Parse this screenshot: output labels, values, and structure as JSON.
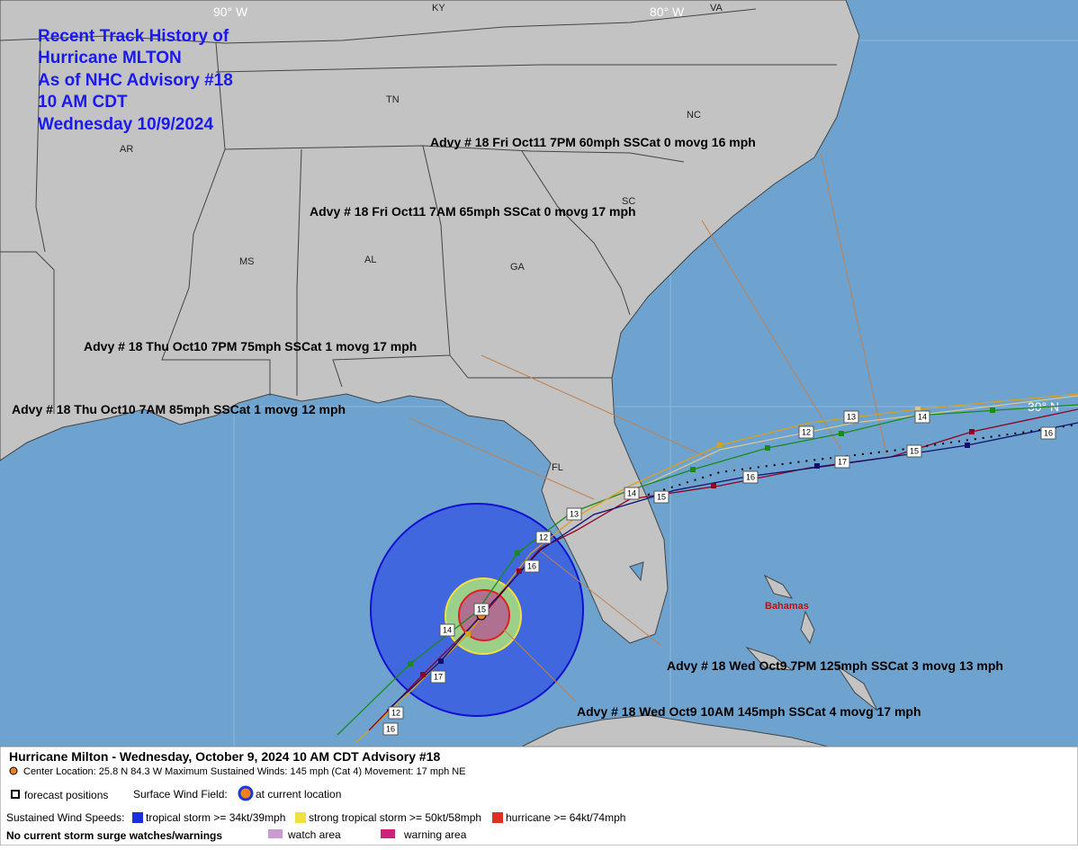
{
  "title": {
    "lines": [
      "Recent Track History of",
      "Hurricane MLTON",
      "As of NHC Advisory #18",
      "10 AM CDT",
      "Wednesday 10/9/2024"
    ]
  },
  "grid_labels": [
    "90° W",
    "80° W",
    "30° N"
  ],
  "places": [
    "KY",
    "VA",
    "TN",
    "NC",
    "AR",
    "SC",
    "MS",
    "AL",
    "GA",
    "FL",
    "Bahamas"
  ],
  "advisories": [
    "Advy # 18 Fri Oct11 7PM  60mph SSCat 0 movg 16 mph",
    "Advy # 18 Fri Oct11 7AM  65mph SSCat 0 movg 17 mph",
    "Advy # 18 Thu Oct10 7PM  75mph SSCat 1 movg 17 mph",
    "Advy # 18 Thu Oct10 7AM  85mph SSCat 1 movg 12 mph",
    "Advy # 18 Wed Oct9 7PM  125mph SSCat 3 movg 13 mph",
    "Advy # 18 Wed Oct9 10AM  145mph SSCat 4 movg 17 mph"
  ],
  "track_labels": [
    "12",
    "13",
    "14",
    "15",
    "16",
    "17",
    "13",
    "14",
    "12",
    "15",
    "16",
    "16",
    "15",
    "14",
    "17",
    "12",
    "16"
  ],
  "legend": {
    "header": "Hurricane Milton  -  Wednesday, October 9, 2024  10 AM CDT   Advisory #18",
    "details": "Center Location: 25.8 N  84.3 W   Maximum Sustained Winds: 145 mph (Cat 4) Movement: 17 mph NE",
    "forecast": "forecast positions",
    "wind_field": "Surface Wind Field:",
    "current": "at current location",
    "speeds": "Sustained Wind Speeds:",
    "ts": "tropical storm >= 34kt/39mph",
    "sts": "strong tropical storm >= 50kt/58mph",
    "hu": "hurricane >= 64kt/74mph",
    "surge": "No current storm surge watches/warnings",
    "watch": "watch area",
    "warning": "warning area"
  }
}
